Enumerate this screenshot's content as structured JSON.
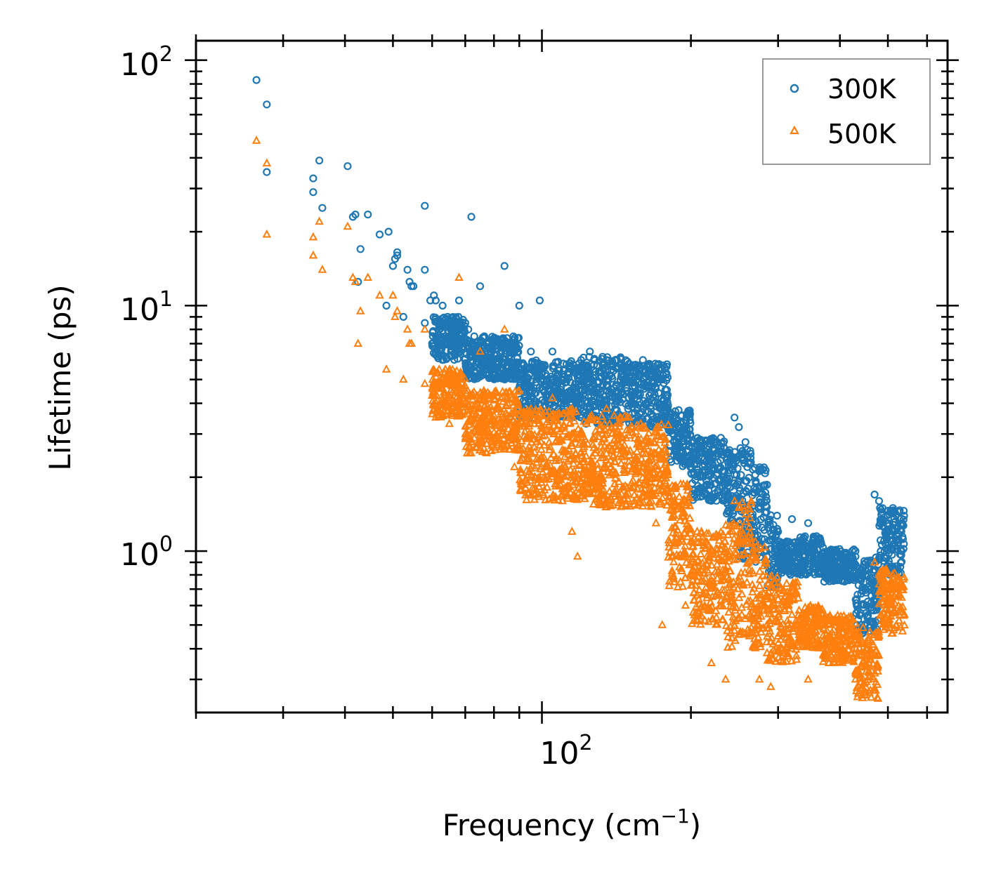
{
  "chart_data": {
    "type": "scatter",
    "title": "",
    "xlabel": "Frequency (cm",
    "xlabel_sup": "−1",
    "xlabel_end": ")",
    "ylabel": "Lifetime (ps)",
    "xscale": "log",
    "yscale": "log",
    "xlim": [
      20,
      660
    ],
    "ylim": [
      0.22,
      120
    ],
    "x_major_ticks": [
      {
        "base": "10",
        "exp": "2",
        "value": 100
      }
    ],
    "y_major_ticks": [
      {
        "base": "10",
        "exp": "0",
        "value": 1
      },
      {
        "base": "10",
        "exp": "1",
        "value": 10
      },
      {
        "base": "10",
        "exp": "2",
        "value": 100
      }
    ],
    "legend_position": "top-right",
    "series": [
      {
        "name": "300K",
        "color": "#1f77b4",
        "marker": "circle",
        "points": [
          [
            26.5,
            83
          ],
          [
            27.8,
            66
          ],
          [
            27.8,
            35
          ],
          [
            34.5,
            33
          ],
          [
            34.5,
            29
          ],
          [
            35.5,
            39
          ],
          [
            36,
            25
          ],
          [
            40.5,
            37
          ],
          [
            41.5,
            23
          ],
          [
            42,
            23.5
          ],
          [
            44.5,
            23.5
          ],
          [
            43,
            17
          ],
          [
            42.5,
            12.5
          ],
          [
            47,
            19.5
          ],
          [
            49,
            20
          ],
          [
            48.5,
            10
          ],
          [
            50,
            14.5
          ],
          [
            50.5,
            15.5
          ],
          [
            51,
            16.5
          ],
          [
            51,
            16
          ],
          [
            52.5,
            9
          ],
          [
            53.5,
            14
          ],
          [
            54,
            12.5
          ],
          [
            54.5,
            12
          ],
          [
            55,
            12
          ],
          [
            58,
            25.5
          ],
          [
            58,
            14
          ],
          [
            58,
            8.5
          ],
          [
            59.5,
            10.5
          ],
          [
            60.5,
            11
          ],
          [
            61,
            10.5
          ],
          [
            60,
            7
          ],
          [
            63,
            10
          ],
          [
            62,
            8
          ],
          [
            64.5,
            9
          ],
          [
            66,
            8.5
          ],
          [
            67,
            8
          ],
          [
            68,
            10.5
          ],
          [
            70,
            8.5
          ],
          [
            71,
            8
          ],
          [
            72,
            23
          ],
          [
            73,
            7.5
          ],
          [
            75,
            12
          ],
          [
            76.5,
            7.5
          ],
          [
            78,
            7
          ],
          [
            84,
            14.5
          ],
          [
            85,
            7
          ],
          [
            88,
            6.5
          ],
          [
            90,
            10
          ],
          [
            95,
            6.5
          ],
          [
            99,
            10.5
          ],
          [
            105,
            6.5
          ],
          [
            120,
            6
          ],
          [
            125,
            6.5
          ],
          [
            135,
            6
          ],
          [
            150,
            5.8
          ],
          [
            160,
            6
          ],
          [
            168,
            5.5
          ],
          [
            175,
            5
          ],
          [
            185,
            3.2
          ],
          [
            195,
            3
          ],
          [
            210,
            2.8
          ],
          [
            225,
            2.5
          ],
          [
            245,
            3.5
          ],
          [
            250,
            3.2
          ],
          [
            260,
            2.2
          ],
          [
            275,
            1.8
          ],
          [
            290,
            1.4
          ],
          [
            300,
            1.2
          ],
          [
            320,
            1.35
          ],
          [
            345,
            1.3
          ],
          [
            380,
            1.0
          ],
          [
            430,
            0.95
          ],
          [
            470,
            1.7
          ],
          [
            480,
            1.6
          ],
          [
            500,
            1.3
          ],
          [
            520,
            1.1
          ]
        ],
        "bands": [
          {
            "x": [
              60,
              70
            ],
            "y": [
              6,
              9
            ]
          },
          {
            "x": [
              70,
              90
            ],
            "y": [
              5,
              7.5
            ]
          },
          {
            "x": [
              90,
              120
            ],
            "y": [
              3.5,
              6
            ]
          },
          {
            "x": [
              120,
              150
            ],
            "y": [
              3.3,
              6.2
            ]
          },
          {
            "x": [
              150,
              180
            ],
            "y": [
              3.2,
              5.8
            ]
          },
          {
            "x": [
              180,
              200
            ],
            "y": [
              2.2,
              3.8
            ]
          },
          {
            "x": [
              200,
              235
            ],
            "y": [
              1.6,
              2.9
            ]
          },
          {
            "x": [
              235,
              250
            ],
            "y": [
              1.3,
              2.6
            ]
          },
          {
            "x": [
              250,
              265
            ],
            "y": [
              0.9,
              2.8
            ]
          },
          {
            "x": [
              265,
              285
            ],
            "y": [
              0.9,
              2.2
            ]
          },
          {
            "x": [
              285,
              300
            ],
            "y": [
              0.7,
              1.4
            ]
          },
          {
            "x": [
              300,
              330
            ],
            "y": [
              0.8,
              1.1
            ]
          },
          {
            "x": [
              330,
              370
            ],
            "y": [
              0.8,
              1.15
            ]
          },
          {
            "x": [
              370,
              430
            ],
            "y": [
              0.75,
              1.02
            ]
          },
          {
            "x": [
              430,
              480
            ],
            "y": [
              0.45,
              0.95
            ]
          },
          {
            "x": [
              480,
              540
            ],
            "y": [
              0.8,
              1.5
            ]
          }
        ]
      },
      {
        "name": "500K",
        "color": "#ff7f0e",
        "marker": "triangle",
        "points": [
          [
            26.5,
            47
          ],
          [
            27.8,
            38
          ],
          [
            27.8,
            19.5
          ],
          [
            34.5,
            19
          ],
          [
            34.5,
            16
          ],
          [
            35.5,
            22
          ],
          [
            36,
            14
          ],
          [
            40.5,
            21
          ],
          [
            41.5,
            13
          ],
          [
            42,
            12.5
          ],
          [
            43,
            9.5
          ],
          [
            42.5,
            7
          ],
          [
            44.5,
            13
          ],
          [
            47,
            11
          ],
          [
            48.5,
            5.5
          ],
          [
            50,
            11
          ],
          [
            50.5,
            9
          ],
          [
            51,
            9.5
          ],
          [
            52.5,
            5
          ],
          [
            53.5,
            8
          ],
          [
            54,
            7
          ],
          [
            54.5,
            7
          ],
          [
            58,
            8
          ],
          [
            58,
            4.8
          ],
          [
            60,
            4.3
          ],
          [
            60.5,
            3.8
          ],
          [
            61,
            3.5
          ],
          [
            62,
            5.5
          ],
          [
            63,
            5
          ],
          [
            65,
            3.3
          ],
          [
            66,
            5
          ],
          [
            67,
            4.5
          ],
          [
            68,
            13
          ],
          [
            70,
            4.5
          ],
          [
            72,
            3.4
          ],
          [
            75,
            6.5
          ],
          [
            78,
            4.2
          ],
          [
            84,
            8
          ],
          [
            88,
            2.2
          ],
          [
            90,
            4.5
          ],
          [
            95,
            3.8
          ],
          [
            105,
            4.2
          ],
          [
            110,
            1.6
          ],
          [
            115,
            1.2
          ],
          [
            118,
            0.95
          ],
          [
            125,
            3.5
          ],
          [
            135,
            3.8
          ],
          [
            150,
            3.5
          ],
          [
            160,
            2.5
          ],
          [
            170,
            1.3
          ],
          [
            175,
            0.5
          ],
          [
            185,
            1.8
          ],
          [
            195,
            0.6
          ],
          [
            210,
            1.2
          ],
          [
            220,
            0.35
          ],
          [
            235,
            0.3
          ],
          [
            245,
            1.6
          ],
          [
            250,
            1.5
          ],
          [
            275,
            0.3
          ],
          [
            290,
            0.28
          ],
          [
            320,
            0.55
          ],
          [
            345,
            0.3
          ],
          [
            380,
            0.35
          ],
          [
            430,
            0.3
          ],
          [
            470,
            0.9
          ],
          [
            480,
            0.8
          ],
          [
            500,
            0.55
          ],
          [
            520,
            0.5
          ]
        ],
        "bands": [
          {
            "x": [
              60,
              70
            ],
            "y": [
              3.5,
              5.5
            ]
          },
          {
            "x": [
              70,
              90
            ],
            "y": [
              2.5,
              4.5
            ]
          },
          {
            "x": [
              90,
              120
            ],
            "y": [
              1.6,
              3.8
            ]
          },
          {
            "x": [
              120,
              150
            ],
            "y": [
              1.5,
              3.6
            ]
          },
          {
            "x": [
              150,
              180
            ],
            "y": [
              1.5,
              3.3
            ]
          },
          {
            "x": [
              180,
              200
            ],
            "y": [
              0.7,
              1.9
            ]
          },
          {
            "x": [
              200,
              235
            ],
            "y": [
              0.5,
              1.2
            ]
          },
          {
            "x": [
              235,
              250
            ],
            "y": [
              0.4,
              1.3
            ]
          },
          {
            "x": [
              250,
              265
            ],
            "y": [
              0.45,
              1.6
            ]
          },
          {
            "x": [
              265,
              285
            ],
            "y": [
              0.4,
              1.1
            ]
          },
          {
            "x": [
              285,
              300
            ],
            "y": [
              0.35,
              0.8
            ]
          },
          {
            "x": [
              300,
              330
            ],
            "y": [
              0.35,
              0.75
            ]
          },
          {
            "x": [
              330,
              370
            ],
            "y": [
              0.4,
              0.6
            ]
          },
          {
            "x": [
              370,
              430
            ],
            "y": [
              0.35,
              0.55
            ]
          },
          {
            "x": [
              430,
              480
            ],
            "y": [
              0.25,
              0.5
            ]
          },
          {
            "x": [
              480,
              540
            ],
            "y": [
              0.45,
              0.85
            ]
          }
        ]
      }
    ]
  }
}
